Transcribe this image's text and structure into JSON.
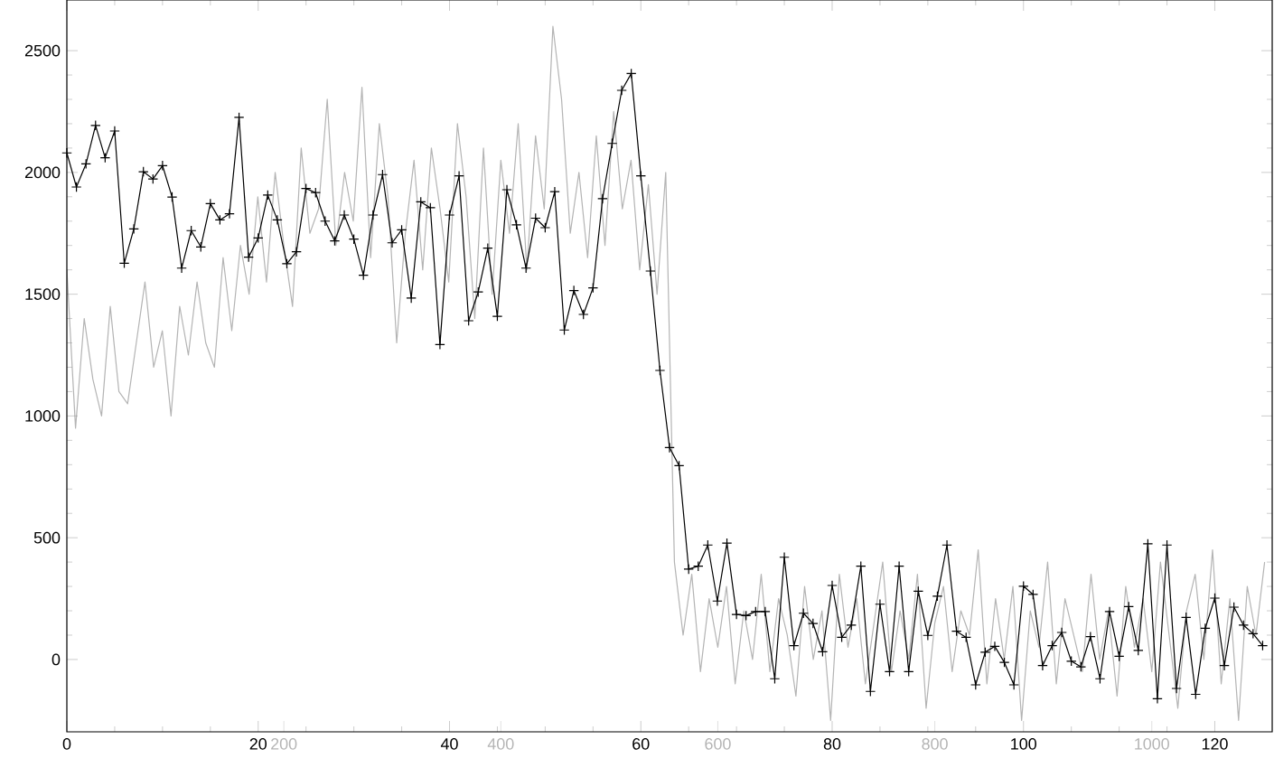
{
  "chart_data": {
    "type": "line",
    "marker": "cross",
    "line_style": "solid",
    "grid": false,
    "x": [
      0,
      1,
      2,
      3,
      4,
      5,
      6,
      7,
      8,
      9,
      10,
      11,
      12,
      13,
      14,
      15,
      16,
      17,
      18,
      19,
      20,
      21,
      22,
      23,
      24,
      25,
      26,
      27,
      28,
      29,
      30,
      31,
      32,
      33,
      34,
      35,
      36,
      37,
      38,
      39,
      40,
      41,
      42,
      43,
      44,
      45,
      46,
      47,
      48,
      49,
      50,
      51,
      52,
      53,
      54,
      55,
      56,
      57,
      58,
      59,
      60,
      61,
      62,
      63,
      64,
      65,
      66,
      67,
      68,
      69,
      70,
      71,
      72,
      73,
      74,
      75,
      76,
      77,
      78,
      79,
      80,
      81,
      82,
      83,
      84,
      85,
      86,
      87,
      88,
      89,
      90,
      91,
      92,
      93,
      94,
      95,
      96,
      97,
      98,
      99,
      100,
      101,
      102,
      103,
      104,
      105,
      106,
      107,
      108,
      109,
      110,
      111,
      112,
      113,
      114,
      115,
      116,
      117,
      118,
      119,
      120,
      121,
      122,
      123,
      124,
      125
    ],
    "xlim": [
      0,
      126
    ],
    "xticks": [
      0,
      20,
      40,
      60,
      80,
      100,
      120
    ],
    "x2lim": [
      0,
      1111
    ],
    "x2ticks": [
      200,
      400,
      600,
      800,
      1000
    ],
    "ylim": [
      -297,
      2708
    ],
    "yticks": [
      0,
      500,
      1000,
      1500,
      2000,
      2500
    ],
    "series": [
      {
        "color": "#b4b4b4",
        "axis": "x2",
        "marker": "none",
        "x": [
          0,
          8,
          16,
          24,
          32,
          40,
          48,
          56,
          64,
          72,
          80,
          88,
          96,
          104,
          112,
          120,
          128,
          136,
          144,
          152,
          160,
          168,
          176,
          184,
          192,
          200,
          208,
          216,
          224,
          232,
          240,
          248,
          256,
          264,
          272,
          280,
          288,
          296,
          304,
          312,
          320,
          328,
          336,
          344,
          352,
          360,
          368,
          376,
          384,
          392,
          400,
          408,
          416,
          424,
          432,
          440,
          448,
          456,
          464,
          472,
          480,
          488,
          496,
          504,
          512,
          520,
          528,
          536,
          544,
          552,
          560,
          568,
          576,
          584,
          592,
          600,
          608,
          616,
          624,
          632,
          640,
          648,
          656,
          664,
          672,
          680,
          688,
          696,
          704,
          712,
          720,
          728,
          736,
          744,
          752,
          760,
          768,
          776,
          784,
          792,
          800,
          808,
          816,
          824,
          832,
          840,
          848,
          856,
          864,
          872,
          880,
          888,
          896,
          904,
          912,
          920,
          928,
          936,
          944,
          952,
          960,
          968,
          976,
          984,
          992,
          1000,
          1008,
          1016,
          1024,
          1032,
          1040,
          1048,
          1056,
          1064,
          1072,
          1080,
          1088,
          1096,
          1104
        ],
        "values": [
          1600,
          950,
          1400,
          1150,
          1000,
          1450,
          1100,
          1050,
          1300,
          1550,
          1200,
          1350,
          1000,
          1450,
          1250,
          1550,
          1300,
          1200,
          1650,
          1350,
          1700,
          1500,
          1900,
          1550,
          2000,
          1700,
          1450,
          2100,
          1750,
          1850,
          2300,
          1700,
          2000,
          1800,
          2350,
          1650,
          2200,
          1900,
          1300,
          1750,
          2050,
          1600,
          2100,
          1850,
          1550,
          2200,
          1900,
          1400,
          2100,
          1500,
          2050,
          1750,
          2200,
          1600,
          2150,
          1850,
          2600,
          2300,
          1750,
          2000,
          1650,
          2150,
          1700,
          2250,
          1850,
          2050,
          1600,
          1950,
          1500,
          2000,
          400,
          100,
          350,
          -50,
          250,
          50,
          300,
          -100,
          200,
          0,
          350,
          -50,
          250,
          100,
          -150,
          300,
          0,
          200,
          -250,
          350,
          50,
          250,
          -100,
          150,
          400,
          -50,
          200,
          0,
          350,
          -200,
          150,
          300,
          -50,
          200,
          100,
          450,
          -100,
          250,
          0,
          300,
          -250,
          200,
          50,
          400,
          -100,
          250,
          100,
          -50,
          350,
          0,
          200,
          -150,
          300,
          50,
          250,
          -50,
          400,
          100,
          -200,
          200,
          350,
          0,
          450,
          -100,
          250,
          -250,
          300,
          100,
          400
        ]
      },
      {
        "color": "#000000",
        "values": [
          2080,
          1940,
          2035,
          2193,
          2060,
          2170,
          1627,
          1768,
          2003,
          1973,
          2028,
          1899,
          1607,
          1761,
          1694,
          1872,
          1805,
          1830,
          2226,
          1652,
          1731,
          1907,
          1805,
          1625,
          1674,
          1934,
          1917,
          1800,
          1719,
          1825,
          1726,
          1578,
          1825,
          1991,
          1711,
          1764,
          1484,
          1879,
          1855,
          1293,
          1825,
          1986,
          1391,
          1509,
          1689,
          1409,
          1929,
          1785,
          1607,
          1812,
          1773,
          1921,
          1353,
          1515,
          1417,
          1526,
          1892,
          2119,
          2337,
          2406,
          1986,
          1595,
          1187,
          870,
          796,
          371,
          383,
          470,
          240,
          478,
          185,
          180,
          197,
          197,
          -79,
          420,
          57,
          190,
          148,
          32,
          304,
          91,
          141,
          383,
          -131,
          227,
          -50,
          383,
          -50,
          280,
          99,
          260,
          470,
          116,
          91,
          -104,
          30,
          54,
          -12,
          -104,
          301,
          267,
          -25,
          57,
          111,
          -7,
          -30,
          94,
          -79,
          197,
          13,
          217,
          37,
          475,
          -161,
          470,
          -119,
          173,
          -143,
          128,
          252,
          -25,
          215,
          141,
          106,
          57
        ]
      }
    ]
  }
}
